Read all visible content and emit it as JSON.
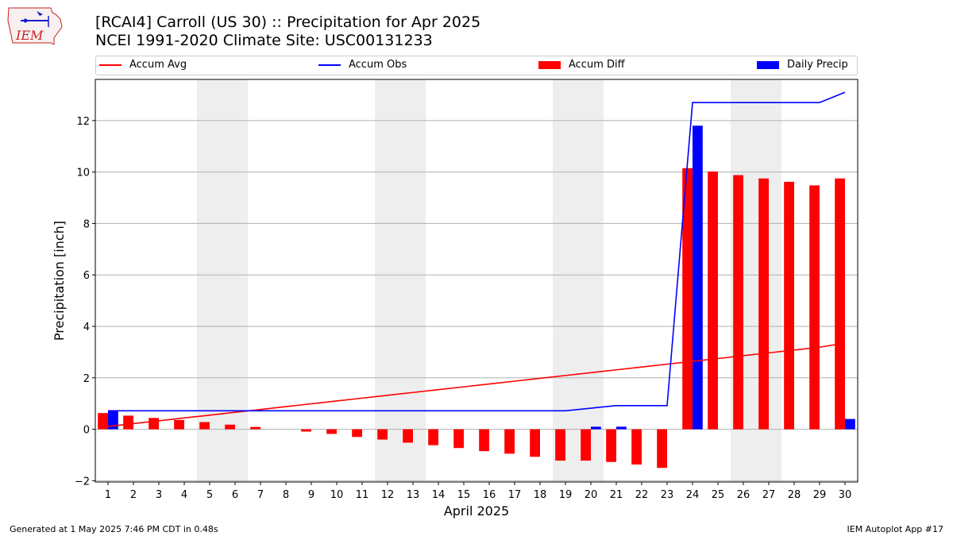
{
  "header": {
    "logo_text": "IEM",
    "title_line1": "[RCAI4] Carroll (US 30) :: Precipitation for Apr 2025",
    "title_line2": "NCEI 1991-2020 Climate Site: USC00131233"
  },
  "legend": {
    "position": "top",
    "items": [
      {
        "label": "Accum Avg",
        "kind": "line",
        "color": "#ff0000"
      },
      {
        "label": "Accum Obs",
        "kind": "line",
        "color": "#0000ff"
      },
      {
        "label": "Accum Diff",
        "kind": "bar",
        "color": "#ff0000"
      },
      {
        "label": "Daily Precip",
        "kind": "bar",
        "color": "#0000ff"
      }
    ]
  },
  "footer": {
    "left": "Generated at 1 May 2025 7:46 PM CDT in 0.48s",
    "right": "IEM Autoplot App #17"
  },
  "chart_data": {
    "type": "bar",
    "title": "[RCAI4] Carroll (US 30) :: Precipitation for Apr 2025",
    "subtitle": "NCEI 1991-2020 Climate Site: USC00131233",
    "xlabel": "April 2025",
    "ylabel": "Precipitation [inch]",
    "ylim": [
      -2.05,
      13.6
    ],
    "xlim": [
      0.5,
      30.5
    ],
    "yticks": [
      -2,
      0,
      2,
      4,
      6,
      8,
      10,
      12
    ],
    "grid": "horizontal",
    "legend_position": "top",
    "weekend_shading_days": [
      [
        5,
        6
      ],
      [
        12,
        13
      ],
      [
        19,
        20
      ],
      [
        26,
        27
      ]
    ],
    "shading_color": "#eeeeee",
    "days": [
      1,
      2,
      3,
      4,
      5,
      6,
      7,
      8,
      9,
      10,
      11,
      12,
      13,
      14,
      15,
      16,
      17,
      18,
      19,
      20,
      21,
      22,
      23,
      24,
      25,
      26,
      27,
      28,
      29,
      30
    ],
    "series": [
      {
        "name": "Accum Avg",
        "kind": "line",
        "color": "#ff0000",
        "values": [
          0.11,
          0.22,
          0.33,
          0.44,
          0.55,
          0.66,
          0.77,
          0.88,
          0.99,
          1.1,
          1.21,
          1.32,
          1.43,
          1.54,
          1.65,
          1.76,
          1.87,
          1.98,
          2.09,
          2.2,
          2.31,
          2.42,
          2.53,
          2.64,
          2.75,
          2.86,
          2.97,
          3.08,
          3.19,
          3.35
        ]
      },
      {
        "name": "Accum Obs",
        "kind": "line",
        "color": "#0000ff",
        "values": [
          0.72,
          0.72,
          0.72,
          0.72,
          0.72,
          0.72,
          0.72,
          0.72,
          0.72,
          0.72,
          0.72,
          0.72,
          0.72,
          0.72,
          0.72,
          0.72,
          0.72,
          0.72,
          0.72,
          0.82,
          0.92,
          0.92,
          0.92,
          12.7,
          12.7,
          12.7,
          12.7,
          12.7,
          12.7,
          13.1
        ]
      },
      {
        "name": "Accum Diff",
        "kind": "bar",
        "color": "#ff0000",
        "values": [
          0.63,
          0.53,
          0.44,
          0.36,
          0.28,
          0.18,
          0.09,
          0.0,
          -0.09,
          -0.18,
          -0.3,
          -0.4,
          -0.52,
          -0.62,
          -0.73,
          -0.85,
          -0.95,
          -1.07,
          -1.22,
          -1.22,
          -1.27,
          -1.37,
          -1.5,
          10.15,
          10.02,
          9.88,
          9.75,
          9.62,
          9.48,
          9.75
        ]
      },
      {
        "name": "Daily Precip",
        "kind": "bar",
        "color": "#0000ff",
        "values": [
          0.72,
          0,
          0,
          0,
          0,
          0,
          0,
          0,
          0,
          0,
          0,
          0,
          0,
          0,
          0,
          0,
          0,
          0,
          0,
          0.1,
          0.1,
          0,
          0,
          11.8,
          0,
          0,
          0,
          0,
          0,
          0.4
        ]
      }
    ]
  }
}
